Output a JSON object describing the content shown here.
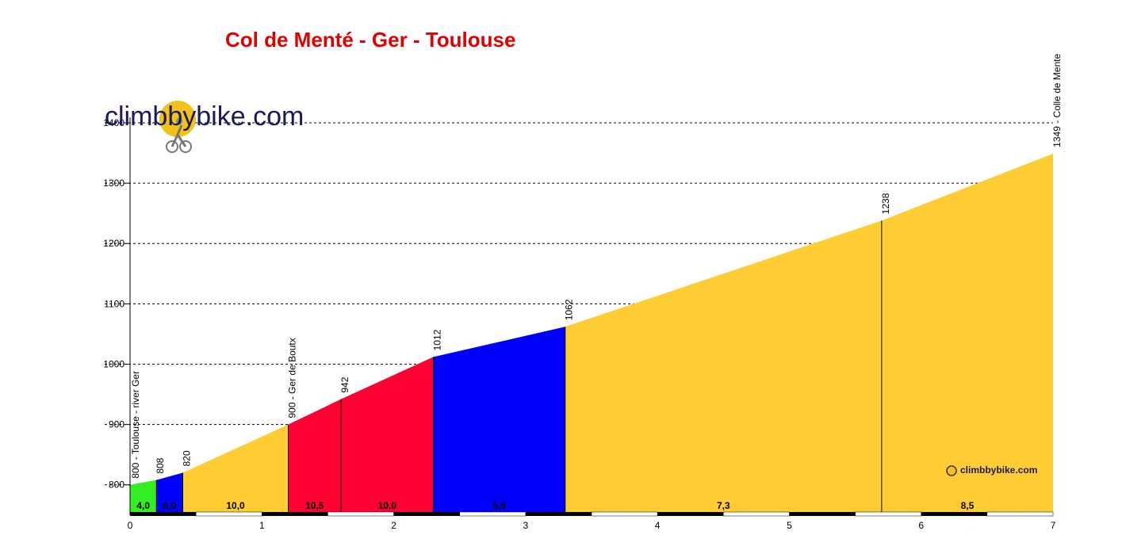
{
  "logo": {
    "text": "climbbybike.com",
    "small_text": "climbbybike.com"
  },
  "chart_data": {
    "type": "area",
    "title": "Col de Menté - Ger - Toulouse",
    "xlim": [
      0,
      7
    ],
    "ylim": [
      755,
      1400
    ],
    "x_ticks": [
      0,
      1,
      2,
      3,
      4,
      5,
      6,
      7
    ],
    "y_ticks": [
      800,
      900,
      1000,
      1100,
      1200,
      1300,
      1400
    ],
    "grid": true,
    "colors": {
      "green": "#33ee22",
      "blue": "#0000ff",
      "yellow": "#ffcc33",
      "red": "#ff0033"
    },
    "points": [
      {
        "x": 0.0,
        "y": 800,
        "label": "800 - Toulouse - river Ger"
      },
      {
        "x": 0.2,
        "y": 808,
        "label": "808"
      },
      {
        "x": 0.4,
        "y": 820,
        "label": "820"
      },
      {
        "x": 1.2,
        "y": 900,
        "label": "900 - Ger de Boutx"
      },
      {
        "x": 1.6,
        "y": 942,
        "label": "942"
      },
      {
        "x": 2.3,
        "y": 1012,
        "label": "1012"
      },
      {
        "x": 3.3,
        "y": 1062,
        "label": "1062"
      },
      {
        "x": 5.7,
        "y": 1238,
        "label": "1238"
      },
      {
        "x": 7.0,
        "y": 1349,
        "label": "1349 - Colle de Mente"
      }
    ],
    "segments": [
      {
        "gradient": "4,0",
        "color": "green"
      },
      {
        "gradient": "6,0",
        "color": "blue"
      },
      {
        "gradient": "10,0",
        "color": "yellow"
      },
      {
        "gradient": "10,5",
        "color": "red"
      },
      {
        "gradient": "10,0",
        "color": "red"
      },
      {
        "gradient": "5,0",
        "color": "blue"
      },
      {
        "gradient": "7,3",
        "color": "yellow"
      },
      {
        "gradient": "8,5",
        "color": "yellow"
      }
    ]
  }
}
